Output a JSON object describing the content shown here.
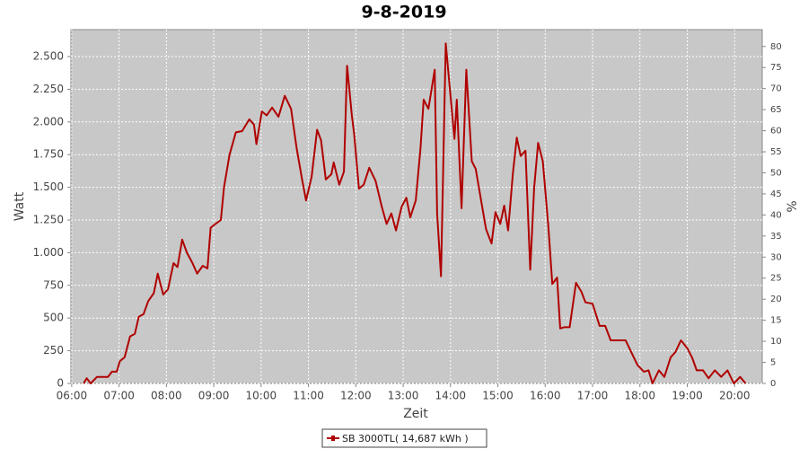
{
  "chart_data": {
    "type": "line",
    "title": "9-8-2019",
    "x_label": "Zeit",
    "y_label": "Watt",
    "y2_label": "%",
    "x": [
      "06:15",
      "06:19",
      "06:24",
      "06:32",
      "06:46",
      "06:51",
      "06:57",
      "07:01",
      "07:07",
      "07:14",
      "07:20",
      "07:25",
      "07:31",
      "07:37",
      "07:44",
      "07:49",
      "07:56",
      "08:02",
      "08:09",
      "08:14",
      "08:20",
      "08:26",
      "08:33",
      "08:39",
      "08:46",
      "08:52",
      "08:56",
      "09:02",
      "09:09",
      "09:13",
      "09:20",
      "09:28",
      "09:36",
      "09:45",
      "09:51",
      "09:54",
      "10:01",
      "10:07",
      "10:14",
      "10:22",
      "10:30",
      "10:38",
      "10:45",
      "10:52",
      "10:57",
      "11:04",
      "11:11",
      "11:16",
      "11:22",
      "11:29",
      "11:32",
      "11:39",
      "11:45",
      "11:49",
      "11:55",
      "11:58",
      "12:04",
      "12:10",
      "12:17",
      "12:25",
      "12:33",
      "12:39",
      "12:45",
      "12:51",
      "12:58",
      "13:04",
      "13:09",
      "13:16",
      "13:22",
      "13:26",
      "13:32",
      "13:40",
      "13:43",
      "13:48",
      "13:54",
      "14:00",
      "14:05",
      "14:08",
      "14:14",
      "14:20",
      "14:27",
      "14:32",
      "14:39",
      "14:45",
      "14:52",
      "14:57",
      "15:03",
      "15:08",
      "15:13",
      "15:19",
      "15:24",
      "15:29",
      "15:35",
      "15:41",
      "15:46",
      "15:51",
      "15:57",
      "16:04",
      "16:09",
      "16:15",
      "16:19",
      "16:24",
      "16:31",
      "16:39",
      "16:46",
      "16:51",
      "17:00",
      "17:09",
      "17:16",
      "17:23",
      "17:32",
      "17:42",
      "17:49",
      "17:57",
      "18:05",
      "18:11",
      "18:16",
      "18:24",
      "18:31",
      "18:39",
      "18:45",
      "18:52",
      "19:00",
      "19:06",
      "19:12",
      "19:20",
      "19:27",
      "19:35",
      "19:43",
      "19:51",
      "19:59",
      "20:07",
      "20:14"
    ],
    "series": [
      {
        "name": "SB 3000TL( 14,687 kWh )",
        "color": "#b00000",
        "values": [
          0,
          40,
          0,
          50,
          50,
          90,
          90,
          170,
          200,
          360,
          380,
          510,
          530,
          630,
          690,
          840,
          680,
          720,
          920,
          890,
          1100,
          1000,
          920,
          840,
          900,
          880,
          1190,
          1220,
          1250,
          1500,
          1750,
          1920,
          1930,
          2020,
          1980,
          1830,
          2080,
          2050,
          2110,
          2040,
          2200,
          2100,
          1800,
          1560,
          1400,
          1580,
          1940,
          1860,
          1560,
          1600,
          1690,
          1520,
          1620,
          2430,
          2050,
          1900,
          1490,
          1520,
          1650,
          1550,
          1350,
          1220,
          1300,
          1170,
          1350,
          1420,
          1270,
          1400,
          1800,
          2170,
          2100,
          2400,
          1300,
          820,
          2600,
          2200,
          1870,
          2170,
          1340,
          2400,
          1700,
          1640,
          1390,
          1180,
          1070,
          1310,
          1220,
          1360,
          1170,
          1600,
          1880,
          1740,
          1780,
          870,
          1500,
          1840,
          1700,
          1200,
          760,
          810,
          420,
          430,
          430,
          770,
          700,
          620,
          610,
          440,
          440,
          330,
          330,
          330,
          240,
          140,
          90,
          100,
          0,
          100,
          50,
          200,
          240,
          330,
          270,
          200,
          100,
          100,
          40,
          100,
          50,
          100,
          0,
          50,
          0
        ]
      }
    ],
    "xlim": [
      "05:59",
      "20:35"
    ],
    "xticks": [
      "06:00",
      "07:00",
      "08:00",
      "09:00",
      "10:00",
      "11:00",
      "12:00",
      "13:00",
      "14:00",
      "15:00",
      "16:00",
      "17:00",
      "18:00",
      "19:00",
      "20:00"
    ],
    "ylim": [
      0,
      2706
    ],
    "yticks": [
      0,
      250,
      500,
      750,
      {
        "value": 1000,
        "label": "1.000"
      },
      {
        "value": 1250,
        "label": "1.250"
      },
      {
        "value": 1500,
        "label": "1.500"
      },
      {
        "value": 1750,
        "label": "1.750"
      },
      {
        "value": 2000,
        "label": "2.000"
      },
      {
        "value": 2250,
        "label": "2.250"
      },
      {
        "value": 2500,
        "label": "2.500"
      }
    ],
    "y2lim": [
      0,
      84
    ],
    "y2ticks": [
      0,
      5,
      10,
      15,
      20,
      25,
      30,
      35,
      40,
      45,
      50,
      55,
      60,
      65,
      70,
      75,
      80
    ],
    "grid": true,
    "background": "#c8c8c8",
    "legend": "bottom"
  }
}
